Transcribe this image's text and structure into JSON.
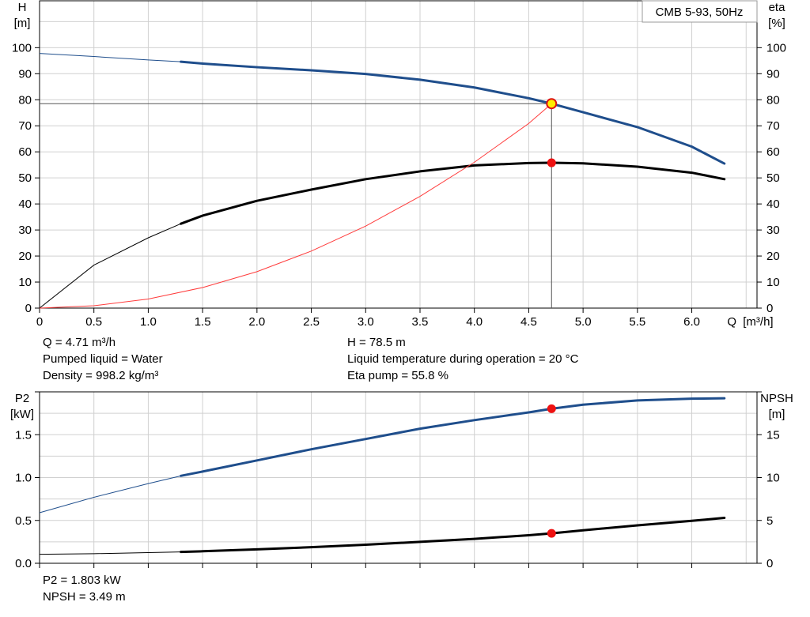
{
  "chart_data": [
    {
      "type": "line",
      "legend_box": "CMB 5-93, 50Hz",
      "x_axis": {
        "label_parts": [
          "Q",
          "[m³/h]"
        ],
        "ticks": [
          "0",
          "0.5",
          "1.0",
          "1.5",
          "2.0",
          "2.5",
          "3.0",
          "3.5",
          "4.0",
          "4.5",
          "5.0",
          "5.5",
          "6.0"
        ],
        "range": [
          0,
          6.6
        ]
      },
      "y_left": {
        "label_lines": [
          "H",
          "[m]"
        ],
        "ticks": [
          "0",
          "10",
          "20",
          "30",
          "40",
          "50",
          "60",
          "70",
          "80",
          "90",
          "100"
        ],
        "range": [
          0,
          118
        ]
      },
      "y_right": {
        "label_lines": [
          "eta",
          "[%]"
        ],
        "ticks": [
          "0",
          "10",
          "20",
          "30",
          "40",
          "50",
          "60",
          "70",
          "80",
          "90",
          "100"
        ],
        "range": [
          0,
          118
        ]
      },
      "grid": true,
      "series": [
        {
          "key": "H",
          "axis": "left",
          "color": "#1f4e8c",
          "thin_until": 1.3,
          "x": [
            0,
            0.5,
            1.0,
            1.3,
            1.5,
            2.0,
            2.5,
            3.0,
            3.5,
            4.0,
            4.5,
            4.71,
            5.0,
            5.5,
            6.0,
            6.3
          ],
          "y": [
            97.8,
            96.6,
            95.3,
            94.6,
            93.9,
            92.5,
            91.3,
            89.9,
            87.7,
            84.7,
            80.6,
            78.5,
            75.2,
            69.5,
            62.0,
            55.5
          ]
        },
        {
          "key": "eta",
          "axis": "right",
          "color": "#000000",
          "thin_until": 1.3,
          "x": [
            0,
            0.5,
            1.0,
            1.3,
            1.5,
            2.0,
            2.5,
            3.0,
            3.5,
            4.0,
            4.5,
            4.71,
            5.0,
            5.5,
            6.0,
            6.3
          ],
          "y": [
            0,
            16.5,
            27.0,
            32.4,
            35.5,
            41.2,
            45.5,
            49.5,
            52.5,
            54.8,
            55.7,
            55.8,
            55.6,
            54.3,
            52.0,
            49.5
          ]
        },
        {
          "key": "system",
          "axis": "left",
          "color": "#ff3b3b",
          "thin_until": 6.3,
          "x": [
            0,
            0.5,
            1.0,
            1.5,
            2.0,
            2.5,
            3.0,
            3.5,
            4.0,
            4.5,
            4.71
          ],
          "y": [
            0,
            0.9,
            3.5,
            7.9,
            14.0,
            21.9,
            31.5,
            42.9,
            56.0,
            70.9,
            78.5
          ]
        }
      ],
      "operating_point": {
        "q": 4.71,
        "h": 78.5,
        "eta": 55.8
      }
    },
    {
      "type": "line",
      "x_axis": {
        "range": [
          0,
          6.6
        ]
      },
      "y_left": {
        "label_lines": [
          "P2",
          "[kW]"
        ],
        "ticks": [
          "0.0",
          "0.5",
          "1.0",
          "1.5"
        ],
        "range": [
          0,
          2.0
        ]
      },
      "y_right": {
        "label_lines": [
          "NPSH",
          "[m]"
        ],
        "ticks": [
          "0",
          "5",
          "10",
          "15"
        ],
        "range": [
          0,
          20
        ]
      },
      "grid": true,
      "series": [
        {
          "key": "P2",
          "axis": "left",
          "color": "#1f4e8c",
          "thin_until": 1.3,
          "x": [
            0,
            0.5,
            1.0,
            1.3,
            1.5,
            2.0,
            2.5,
            3.0,
            3.5,
            4.0,
            4.5,
            4.71,
            5.0,
            5.5,
            6.0,
            6.3
          ],
          "y": [
            0.59,
            0.77,
            0.93,
            1.02,
            1.07,
            1.2,
            1.33,
            1.45,
            1.57,
            1.67,
            1.76,
            1.803,
            1.85,
            1.9,
            1.92,
            1.925
          ]
        },
        {
          "key": "NPSH",
          "axis": "right",
          "color": "#000000",
          "thin_until": 1.3,
          "x": [
            0,
            0.5,
            1.0,
            1.3,
            1.5,
            2.0,
            2.5,
            3.0,
            3.5,
            4.0,
            4.5,
            4.71,
            5.0,
            5.5,
            6.0,
            6.3
          ],
          "y": [
            1.05,
            1.12,
            1.24,
            1.33,
            1.4,
            1.62,
            1.88,
            2.17,
            2.5,
            2.85,
            3.27,
            3.49,
            3.85,
            4.42,
            4.95,
            5.3
          ]
        }
      ],
      "operating_point": {
        "q": 4.71,
        "p2": 1.803,
        "npsh": 3.49
      }
    }
  ],
  "info": {
    "q": "Q = 4.71 m³/h",
    "pumped_liquid": "Pumped liquid = Water",
    "density": "Density = 998.2 kg/m³",
    "h": "H = 78.5 m",
    "liquid_temp": "Liquid temperature during operation = 20 °C",
    "eta_pump": "Eta pump = 55.8 %",
    "p2": "P2 = 1.803 kW",
    "npsh": "NPSH = 3.49 m"
  }
}
